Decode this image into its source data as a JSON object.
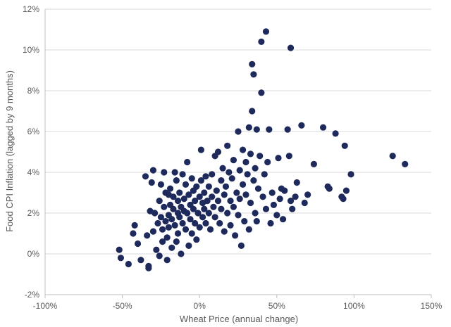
{
  "chart_data": {
    "type": "scatter",
    "title": "",
    "xlabel": "Wheat Price (annual change)",
    "ylabel": "Food CPI Inflation (lagged by 9 months)",
    "xlim": [
      -100,
      150
    ],
    "ylim": [
      -2,
      12
    ],
    "grid": "horizontal",
    "legend": "none",
    "marker_color": "#1f2a5c",
    "x_ticks": [
      "-100%",
      "-50%",
      "0%",
      "50%",
      "100%",
      "150%"
    ],
    "y_ticks": [
      "-2%",
      "0%",
      "2%",
      "4%",
      "6%",
      "8%",
      "10%",
      "12%"
    ],
    "series": [
      {
        "points": [
          [
            -52,
            0.2
          ],
          [
            -51,
            -0.2
          ],
          [
            -46,
            -0.5
          ],
          [
            -43,
            1.0
          ],
          [
            -42,
            1.4
          ],
          [
            -40,
            0.5
          ],
          [
            -38,
            -0.3
          ],
          [
            -35,
            3.8
          ],
          [
            -34,
            0.9
          ],
          [
            -33,
            -0.6
          ],
          [
            -33,
            -0.7
          ],
          [
            -32,
            2.1
          ],
          [
            -31,
            3.5
          ],
          [
            -30,
            4.1
          ],
          [
            -30,
            1.1
          ],
          [
            -29,
            2.0
          ],
          [
            -28,
            0.2
          ],
          [
            -27,
            1.5
          ],
          [
            -26,
            2.6
          ],
          [
            -26,
            -0.1
          ],
          [
            -25,
            3.4
          ],
          [
            -25,
            1.8
          ],
          [
            -24,
            0.6
          ],
          [
            -24,
            1.2
          ],
          [
            -23,
            4.0
          ],
          [
            -23,
            2.3
          ],
          [
            -22,
            3.0
          ],
          [
            -22,
            1.6
          ],
          [
            -21,
            0.8
          ],
          [
            -21,
            -0.3
          ],
          [
            -20,
            2.9
          ],
          [
            -20,
            1.9
          ],
          [
            -20,
            1.3
          ],
          [
            -19,
            3.2
          ],
          [
            -19,
            2.4
          ],
          [
            -18,
            0.3
          ],
          [
            -18,
            1.7
          ],
          [
            -17,
            2.8
          ],
          [
            -17,
            2.2
          ],
          [
            -16,
            4.0
          ],
          [
            -16,
            1.4
          ],
          [
            -15,
            3.6
          ],
          [
            -15,
            0.6
          ],
          [
            -14,
            2.6
          ],
          [
            -14,
            2.0
          ],
          [
            -14,
            1.0
          ],
          [
            -13,
            3.0
          ],
          [
            -13,
            1.8
          ],
          [
            -12,
            2.3
          ],
          [
            -12,
            0.0
          ],
          [
            -11,
            3.9
          ],
          [
            -11,
            1.5
          ],
          [
            -10,
            2.7
          ],
          [
            -10,
            2.1
          ],
          [
            -9,
            1.2
          ],
          [
            -9,
            3.4
          ],
          [
            -8,
            4.5
          ],
          [
            -8,
            2.0
          ],
          [
            -7,
            2.9
          ],
          [
            -7,
            0.4
          ],
          [
            -6,
            1.7
          ],
          [
            -6,
            2.4
          ],
          [
            -5,
            3.7
          ],
          [
            -5,
            1.0
          ],
          [
            -4,
            2.2
          ],
          [
            -4,
            3.1
          ],
          [
            -3,
            1.5
          ],
          [
            -3,
            2.6
          ],
          [
            -2,
            0.7
          ],
          [
            -2,
            3.3
          ],
          [
            -1,
            2.0
          ],
          [
            0,
            2.8
          ],
          [
            0,
            1.3
          ],
          [
            1,
            5.1
          ],
          [
            1,
            3.6
          ],
          [
            2,
            2.5
          ],
          [
            2,
            1.8
          ],
          [
            3,
            3.0
          ],
          [
            3,
            2.2
          ],
          [
            4,
            3.8
          ],
          [
            4,
            1.5
          ],
          [
            5,
            2.6
          ],
          [
            6,
            2.0
          ],
          [
            6,
            3.3
          ],
          [
            7,
            1.2
          ],
          [
            8,
            2.8
          ],
          [
            8,
            3.9
          ],
          [
            9,
            2.3
          ],
          [
            10,
            4.8
          ],
          [
            10,
            1.8
          ],
          [
            11,
            3.1
          ],
          [
            12,
            2.6
          ],
          [
            12,
            5.0
          ],
          [
            13,
            1.5
          ],
          [
            14,
            3.6
          ],
          [
            14,
            2.2
          ],
          [
            15,
            4.2
          ],
          [
            16,
            2.9
          ],
          [
            16,
            1.1
          ],
          [
            17,
            3.3
          ],
          [
            18,
            5.3
          ],
          [
            18,
            2.0
          ],
          [
            19,
            4.0
          ],
          [
            20,
            2.6
          ],
          [
            20,
            1.4
          ],
          [
            21,
            3.7
          ],
          [
            22,
            2.3
          ],
          [
            22,
            4.6
          ],
          [
            23,
            0.9
          ],
          [
            24,
            3.0
          ],
          [
            25,
            6.0
          ],
          [
            25,
            1.9
          ],
          [
            26,
            4.1
          ],
          [
            26,
            2.7
          ],
          [
            27,
            0.4
          ],
          [
            28,
            3.4
          ],
          [
            28,
            5.1
          ],
          [
            29,
            1.6
          ],
          [
            30,
            4.5
          ],
          [
            30,
            2.9
          ],
          [
            31,
            3.9
          ],
          [
            32,
            6.2
          ],
          [
            32,
            1.2
          ],
          [
            33,
            4.9
          ],
          [
            33,
            2.5
          ],
          [
            34,
            7.0
          ],
          [
            34,
            9.3
          ],
          [
            35,
            8.8
          ],
          [
            35,
            3.6
          ],
          [
            36,
            2.0
          ],
          [
            36,
            4.2
          ],
          [
            37,
            6.1
          ],
          [
            37,
            1.6
          ],
          [
            38,
            3.2
          ],
          [
            39,
            4.8
          ],
          [
            40,
            7.9
          ],
          [
            40,
            10.4
          ],
          [
            41,
            2.8
          ],
          [
            42,
            3.9
          ],
          [
            43,
            10.9
          ],
          [
            43,
            2.2
          ],
          [
            44,
            4.5
          ],
          [
            45,
            6.1
          ],
          [
            46,
            1.5
          ],
          [
            47,
            3.0
          ],
          [
            48,
            2.4
          ],
          [
            50,
            1.9
          ],
          [
            51,
            4.7
          ],
          [
            52,
            2.7
          ],
          [
            53,
            3.2
          ],
          [
            54,
            1.7
          ],
          [
            55,
            3.1
          ],
          [
            57,
            6.1
          ],
          [
            58,
            4.8
          ],
          [
            59,
            10.1
          ],
          [
            59,
            2.6
          ],
          [
            60,
            2.2
          ],
          [
            62,
            2.8
          ],
          [
            63,
            3.5
          ],
          [
            66,
            6.3
          ],
          [
            68,
            2.5
          ],
          [
            70,
            2.9
          ],
          [
            74,
            4.4
          ],
          [
            80,
            6.2
          ],
          [
            83,
            3.3
          ],
          [
            84,
            3.2
          ],
          [
            88,
            5.9
          ],
          [
            92,
            2.8
          ],
          [
            93,
            2.7
          ],
          [
            94,
            5.3
          ],
          [
            95,
            3.1
          ],
          [
            98,
            3.9
          ],
          [
            125,
            4.8
          ],
          [
            133,
            4.4
          ]
        ]
      }
    ]
  }
}
